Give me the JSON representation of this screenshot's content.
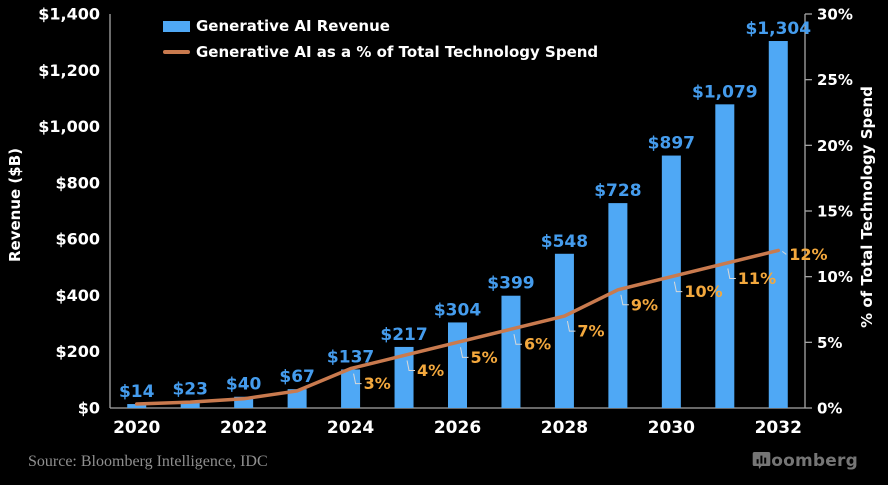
{
  "chart_data": {
    "type": "combo-bar-line",
    "title": "",
    "x": [
      2020,
      2021,
      2022,
      2023,
      2024,
      2025,
      2026,
      2027,
      2028,
      2029,
      2030,
      2031,
      2032
    ],
    "x_axis_tick_labels": [
      "2020",
      "2022",
      "2024",
      "2026",
      "2028",
      "2030",
      "2032"
    ],
    "bar_series": {
      "name": "Generative AI Revenue",
      "values": [
        14,
        23,
        40,
        67,
        137,
        217,
        304,
        399,
        548,
        728,
        897,
        1079,
        1304
      ],
      "labels": [
        "$14",
        "$23",
        "$40",
        "$67",
        "$137",
        "$217",
        "$304",
        "$399",
        "$548",
        "$728",
        "$897",
        "$1,079",
        "$1,304"
      ]
    },
    "line_series": {
      "name": "Generative AI as a % of Total Technology Spend",
      "values": [
        0.3,
        0.45,
        0.7,
        1.3,
        3,
        4,
        5,
        6,
        7,
        9,
        10,
        11,
        12
      ],
      "labels": [
        null,
        null,
        null,
        null,
        "3%",
        "4%",
        "5%",
        "6%",
        "7%",
        "9%",
        "10%",
        "11%",
        "12%"
      ]
    },
    "left_axis": {
      "title": "Revenue ($B)",
      "range": [
        0,
        1400
      ],
      "tick_step": 200,
      "tick_labels": [
        "$0",
        "$200",
        "$400",
        "$600",
        "$800",
        "$1,000",
        "$1,200",
        "$1,400"
      ]
    },
    "right_axis": {
      "title": "% of Total Technology Spend",
      "range": [
        0,
        30
      ],
      "tick_step": 5,
      "tick_labels": [
        "0%",
        "5%",
        "10%",
        "15%",
        "20%",
        "25%",
        "30%"
      ]
    },
    "legend": [
      {
        "label": "Generative AI Revenue",
        "swatch": "bar"
      },
      {
        "label": "Generative AI as a % of Total Technology Spend",
        "swatch": "line"
      }
    ],
    "grid": false,
    "legend_position": "top-left-inside"
  },
  "footer": {
    "source": "Source: Bloomberg Intelligence, IDC",
    "brand": "Bloomberg"
  },
  "colors": {
    "background": "#000000",
    "bar": "#4fa8f5",
    "bar_label": "#459ced",
    "line": "#c97a4e",
    "pct_label": "#f3a83d",
    "axis": "#a6a6a6",
    "tick_label": "#ffffff",
    "leader": "#d9d9d9",
    "source_text": "#8f8f8f",
    "logo": "#757575"
  }
}
